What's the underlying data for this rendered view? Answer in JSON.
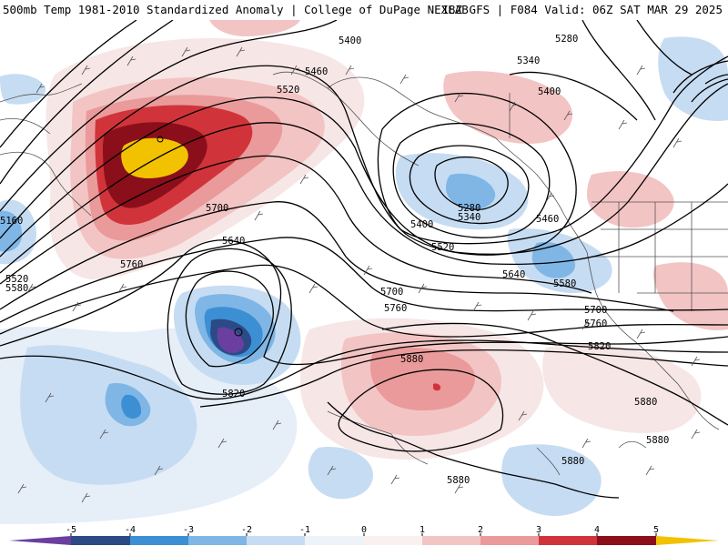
{
  "header": {
    "left_title": "500mb Temp 1981-2010 Standardized Anomaly | College of DuPage NEXLAB",
    "right_title": "18Z GFS | F084 Valid: 06Z SAT MAR 29 2025"
  },
  "colors": {
    "neg5": "#6a3fa0",
    "neg4": "#2b4a86",
    "neg3": "#3d8fd4",
    "neg2": "#7fb6e6",
    "neg1": "#c6dcf2",
    "zero_neg": "#e6eef8",
    "zero_pos": "#f7e6e6",
    "pos1": "#f3c4c4",
    "pos2": "#ea9a9a",
    "pos3": "#d0343a",
    "pos4": "#8a0f1a",
    "pos5": "#f2c200",
    "contour": "#000000",
    "coast": "#555555"
  },
  "colorbar": {
    "ticks": [
      "-5",
      "-4",
      "-3",
      "-2",
      "-1",
      "0",
      "1",
      "2",
      "3",
      "4",
      "5"
    ]
  },
  "contour_labels": [
    {
      "text": "5400"
    },
    {
      "text": "5460"
    },
    {
      "text": "5520"
    },
    {
      "text": "5280"
    },
    {
      "text": "5340"
    },
    {
      "text": "5400"
    },
    {
      "text": "5160"
    },
    {
      "text": "5700"
    },
    {
      "text": "5640"
    },
    {
      "text": "5760"
    },
    {
      "text": "5520"
    },
    {
      "text": "5580"
    },
    {
      "text": "5280"
    },
    {
      "text": "5340"
    },
    {
      "text": "5400"
    },
    {
      "text": "5460"
    },
    {
      "text": "5520"
    },
    {
      "text": "5640"
    },
    {
      "text": "5580"
    },
    {
      "text": "5700"
    },
    {
      "text": "5700"
    },
    {
      "text": "5760"
    },
    {
      "text": "5760"
    },
    {
      "text": "5820"
    },
    {
      "text": "5820"
    },
    {
      "text": "5880"
    },
    {
      "text": "5880"
    },
    {
      "text": "5880"
    },
    {
      "text": "5880"
    },
    {
      "text": "5880"
    }
  ]
}
